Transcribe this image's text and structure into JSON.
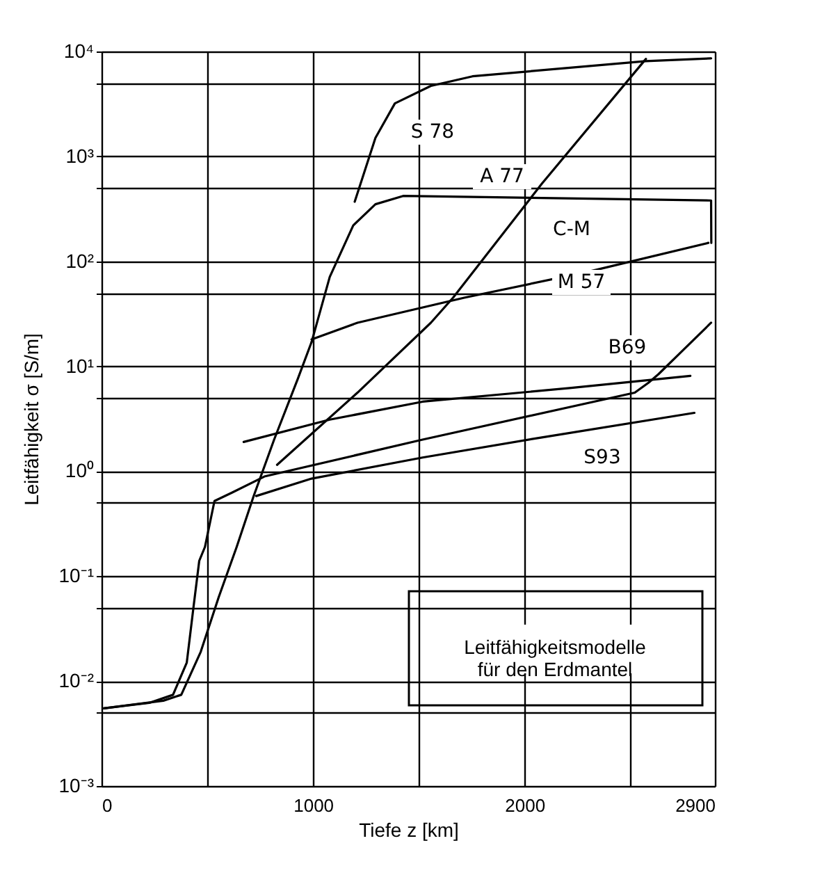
{
  "chart_data": {
    "type": "line",
    "xlabel": "Tiefe z [km]",
    "ylabel": "Leitfähigkeit σ [S/m]",
    "xlim": [
      0,
      2900
    ],
    "ylim": [
      0.001,
      10000
    ],
    "log": true,
    "grid": true,
    "marker": "none",
    "line_style": "solid",
    "xticks": [
      0,
      {
        "value": 500,
        "label": null
      },
      1000,
      {
        "value": 1500,
        "label": null
      },
      2000,
      {
        "value": 2500,
        "label": null
      },
      2900
    ],
    "yticks": [
      {
        "value": 0.001,
        "label": "10⁻³"
      },
      {
        "value": 0.005,
        "label": null
      },
      {
        "value": 0.01,
        "label": "10⁻²"
      },
      {
        "value": 0.05,
        "label": null
      },
      {
        "value": 0.1,
        "label": "10⁻¹"
      },
      {
        "value": 0.5,
        "label": null
      },
      {
        "value": 1,
        "label": "10⁰"
      },
      {
        "value": 5,
        "label": null
      },
      {
        "value": 10,
        "label": "10¹"
      },
      {
        "value": 50,
        "label": null
      },
      {
        "value": 100,
        "label": "10²"
      },
      {
        "value": 500,
        "label": null
      },
      {
        "value": 1000,
        "label": "10³"
      },
      {
        "value": 5000,
        "label": null
      },
      {
        "value": 10000,
        "label": "10⁴"
      }
    ],
    "series": [
      {
        "color": "#000000",
        "x": [
          10,
          292,
          377,
          469,
          554,
          639,
          718,
          816,
          928,
          993,
          1100,
          1197,
          1295,
          1387,
          1557,
          1754,
          2574,
          2882
        ],
        "values": [
          0.0055,
          0.0065,
          0.0074,
          0.019,
          0.063,
          0.19,
          0.57,
          2.0,
          7.6,
          17,
          null,
          370,
          1500,
          3200,
          4700,
          5800,
          8100,
          8600
        ]
      },
      {
        "color": "#000000",
        "x": [
          993,
          1079,
          1190,
          1295,
          1426,
          2882,
          2883
        ],
        "values": [
          17,
          71,
          220,
          350,
          420,
          380,
          150
        ]
      },
      {
        "color": "#000000",
        "x": [
          993,
          1210,
          1715,
          2305,
          2869
        ],
        "values": [
          18,
          26,
          45,
          80,
          150
        ]
      },
      {
        "color": "#000000",
        "x": [
          830,
          1210,
          1557,
          1662,
          2082,
          2574
        ],
        "values": [
          1.15,
          5.6,
          26,
          45,
          550,
          8500
        ]
      },
      {
        "color": "#000000",
        "x": [
          10,
          226,
          338,
          403,
          436,
          462,
          489,
          534,
          620,
          770,
          1518,
          2521,
          2587,
          2633,
          2882
        ],
        "values": [
          0.0055,
          0.0062,
          0.0074,
          0.015,
          0.053,
          0.14,
          0.19,
          0.52,
          0.63,
          0.89,
          2.0,
          5.6,
          7.0,
          8.4,
          26
        ]
      },
      {
        "color": "#000000",
        "x": [
          672,
          1079,
          1518,
          2213,
          2784
        ],
        "values": [
          1.9,
          3.1,
          4.6,
          6.2,
          8.1
        ]
      },
      {
        "color": "#000000",
        "x": [
          731,
          993,
          1518,
          2082,
          2803
        ],
        "values": [
          0.58,
          0.85,
          1.35,
          2.1,
          3.6
        ]
      }
    ],
    "annotations": [
      "Leitfähigkeitsmodelle\nfür den Erdmantel",
      "S 78",
      "A 77",
      "C-M",
      "M 57",
      "B69",
      "S93"
    ]
  }
}
